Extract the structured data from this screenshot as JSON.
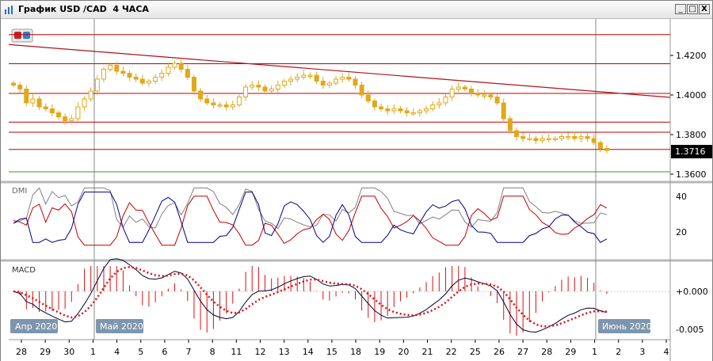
{
  "window": {
    "title": "График USD /CAD  4 ЧАСА",
    "controls": [
      "_",
      "□",
      "X"
    ]
  },
  "colors": {
    "candle": "#e0a81a",
    "level_line": "#c00000",
    "trend_line": "#b0101c",
    "support_line": "#2a9a2a",
    "price_label_bg": "#000000",
    "dmi_plus": "#00008b",
    "dmi_minus": "#c00000",
    "adx": "#808080",
    "macd_line": "#000033",
    "macd_signal": "#dd1111",
    "macd_hist": "#dd1111",
    "date_label_bg": "#7d96ad"
  },
  "price_panel": {
    "y_ticks": [
      "1.4200",
      "1.4000",
      "1.3800",
      "1.3600"
    ],
    "last_price": "1.3716",
    "horizontal_levels": [
      1.4305,
      1.4158,
      1.4008,
      1.3863,
      1.3812,
      1.3725
    ],
    "support_level": 1.3612,
    "trendline": {
      "from": 1.4255,
      "to": 1.3988
    }
  },
  "dmi_panel": {
    "label": "DMI",
    "y_ticks": [
      "40",
      "20"
    ]
  },
  "macd_panel": {
    "label": "MACD",
    "y_ticks": [
      "+0.000",
      "-0.005"
    ]
  },
  "month_labels": [
    "Апр 2020",
    "Май 2020",
    "Июнь 2020"
  ],
  "x_axis": {
    "tick_labels": [
      "28",
      "29",
      "30",
      "1",
      "4",
      "5",
      "6",
      "7",
      "8",
      "11",
      "12",
      "13",
      "14",
      "15",
      "18",
      "19",
      "20",
      "21",
      "22",
      "25",
      "26",
      "27",
      "28",
      "29",
      "1",
      "2",
      "3",
      "4"
    ]
  },
  "chart_data": {
    "type": "line",
    "title": "",
    "series": [
      {
        "values": [
          1.405,
          1.403,
          1.396,
          1.398,
          1.394,
          1.393,
          1.391,
          1.389,
          1.387,
          1.388,
          1.394,
          1.398,
          1.402,
          1.408,
          1.413,
          1.415,
          1.412,
          1.411,
          1.409,
          1.408,
          1.406,
          1.407,
          1.409,
          1.411,
          1.414,
          1.416,
          1.413,
          1.409,
          1.402,
          1.398,
          1.396,
          1.395,
          1.395,
          1.394,
          1.395,
          1.399,
          1.404,
          1.405,
          1.404,
          1.402,
          1.403,
          1.405,
          1.407,
          1.408,
          1.409,
          1.41,
          1.41,
          1.407,
          1.405,
          1.406,
          1.408,
          1.409,
          1.408,
          1.405,
          1.4,
          1.397,
          1.394,
          1.393,
          1.392,
          1.393,
          1.392,
          1.391,
          1.391,
          1.392,
          1.393,
          1.395,
          1.396,
          1.399,
          1.403,
          1.404,
          1.403,
          1.401,
          1.4,
          1.4,
          1.399,
          1.396,
          1.388,
          1.382,
          1.379,
          1.378,
          1.378,
          1.377,
          1.378,
          1.378,
          1.378,
          1.379,
          1.379,
          1.378,
          1.379,
          1.378,
          1.376,
          1.373,
          1.372
        ]
      }
    ]
  }
}
